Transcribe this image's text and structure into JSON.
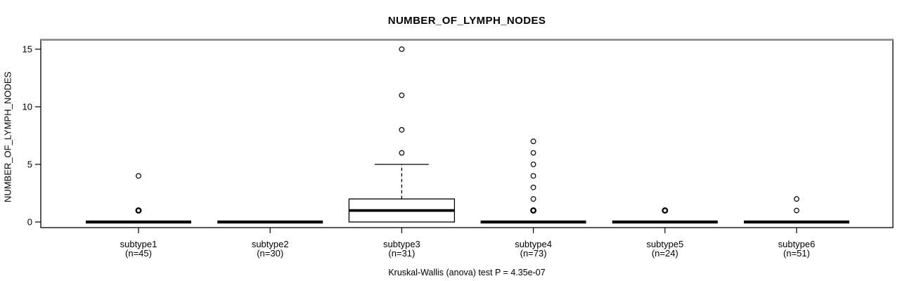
{
  "figure": {
    "title": "NUMBER_OF_LYMPH_NODES",
    "footnote": "Kruskal-Wallis (anova) test P = 4.35e-07"
  },
  "chart_data": {
    "type": "boxplot",
    "title": "NUMBER_OF_LYMPH_NODES",
    "xlabel": "",
    "ylabel": "NUMBER_OF_LYMPH_NODES",
    "ylim": [
      0,
      15
    ],
    "yticks": [
      0,
      5,
      10,
      15
    ],
    "grid": false,
    "legend": "none",
    "footnote": "Kruskal-Wallis (anova) test P = 4.35e-07",
    "categories": [
      "subtype1",
      "subtype2",
      "subtype3",
      "subtype4",
      "subtype5",
      "subtype6"
    ],
    "category_counts": [
      "(n=45)",
      "(n=30)",
      "(n=31)",
      "(n=73)",
      "(n=24)",
      "(n=51)"
    ],
    "series": [
      {
        "label": "subtype1",
        "n": 45,
        "whisker_low": 0,
        "q1": 0,
        "median": 0,
        "q3": 0,
        "whisker_high": 0,
        "outliers": [
          1,
          4
        ],
        "bold_outliers": [
          1
        ]
      },
      {
        "label": "subtype2",
        "n": 30,
        "whisker_low": 0,
        "q1": 0,
        "median": 0,
        "q3": 0,
        "whisker_high": 0,
        "outliers": [],
        "bold_outliers": []
      },
      {
        "label": "subtype3",
        "n": 31,
        "whisker_low": 0,
        "q1": 0,
        "median": 1,
        "q3": 2,
        "whisker_high": 5,
        "outliers": [
          6,
          8,
          11,
          15
        ],
        "bold_outliers": []
      },
      {
        "label": "subtype4",
        "n": 73,
        "whisker_low": 0,
        "q1": 0,
        "median": 0,
        "q3": 0,
        "whisker_high": 0,
        "outliers": [
          1,
          2,
          3,
          4,
          5,
          6,
          7
        ],
        "bold_outliers": [
          1
        ]
      },
      {
        "label": "subtype5",
        "n": 24,
        "whisker_low": 0,
        "q1": 0,
        "median": 0,
        "q3": 0,
        "whisker_high": 0,
        "outliers": [
          1
        ],
        "bold_outliers": [
          1
        ]
      },
      {
        "label": "subtype6",
        "n": 51,
        "whisker_low": 0,
        "q1": 0,
        "median": 0,
        "q3": 0,
        "whisker_high": 0,
        "outliers": [
          1,
          2
        ],
        "bold_outliers": []
      }
    ],
    "colors": {
      "stroke": "#000000",
      "box_fill": "#ffffff",
      "frame_top": "#888888",
      "background": "#ffffff"
    }
  }
}
